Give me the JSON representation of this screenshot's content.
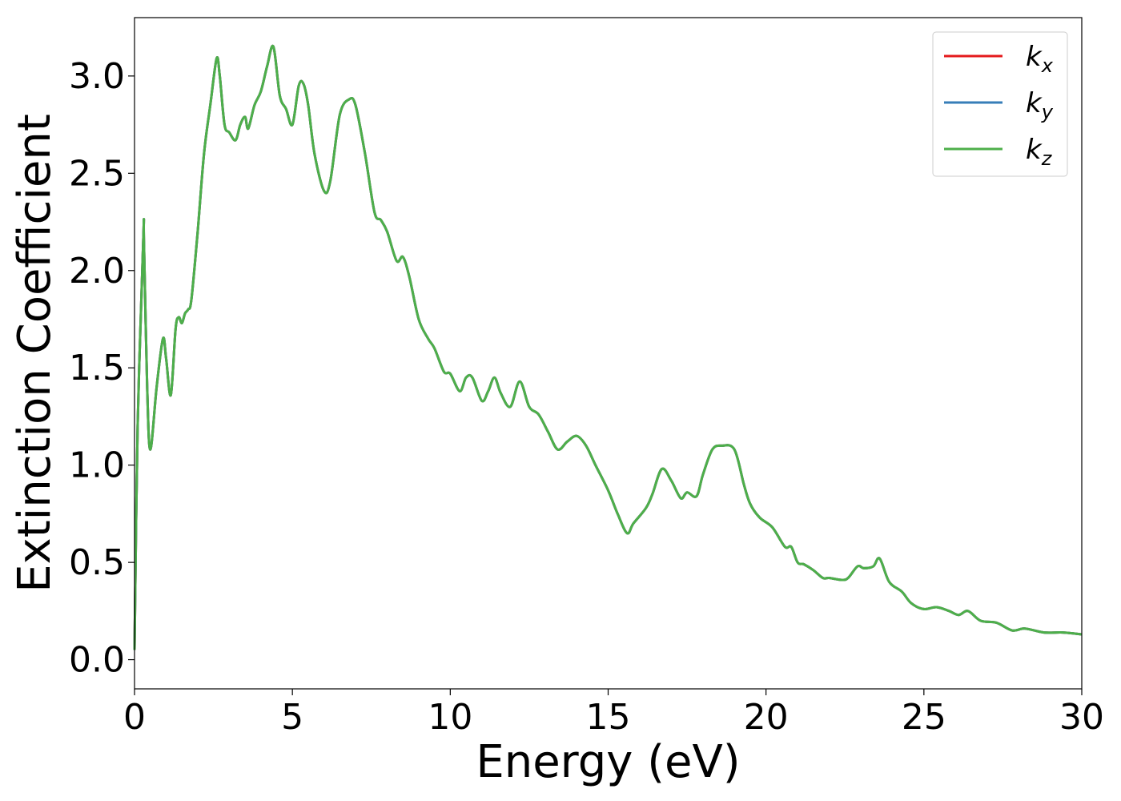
{
  "chart_data": {
    "type": "line",
    "title": "",
    "xlabel": "Energy (eV)",
    "ylabel": "Extinction Coefficient",
    "xlim": [
      0,
      30
    ],
    "ylim": [
      -0.15,
      3.3
    ],
    "xticks": [
      0,
      5,
      10,
      15,
      20,
      25,
      30
    ],
    "xtick_labels": [
      "0",
      "5",
      "10",
      "15",
      "20",
      "25",
      "30"
    ],
    "yticks": [
      0.0,
      0.5,
      1.0,
      1.5,
      2.0,
      2.5,
      3.0
    ],
    "ytick_labels": [
      "0.0",
      "0.5",
      "1.0",
      "1.5",
      "2.0",
      "2.5",
      "3.0"
    ],
    "grid": false,
    "legend_position": "top-right",
    "colors": {
      "kx": "#e41a1c",
      "ky": "#377eb8",
      "kz": "#4daf4a"
    },
    "x": [
      0,
      0.1,
      0.28,
      0.3,
      0.4,
      0.5,
      0.7,
      0.9,
      1.0,
      1.15,
      1.3,
      1.4,
      1.5,
      1.6,
      1.7,
      1.8,
      2.0,
      2.2,
      2.4,
      2.6,
      2.7,
      2.85,
      3.0,
      3.2,
      3.35,
      3.5,
      3.6,
      3.8,
      4.0,
      4.2,
      4.4,
      4.6,
      4.8,
      5.0,
      5.2,
      5.35,
      5.5,
      5.7,
      6.0,
      6.2,
      6.5,
      6.8,
      7.0,
      7.3,
      7.6,
      7.8,
      8.0,
      8.3,
      8.5,
      8.7,
      9.0,
      9.3,
      9.5,
      9.8,
      10.0,
      10.3,
      10.5,
      10.7,
      11.0,
      11.2,
      11.4,
      11.6,
      11.9,
      12.2,
      12.5,
      12.8,
      13.1,
      13.4,
      13.7,
      14.0,
      14.3,
      14.6,
      15.0,
      15.3,
      15.6,
      15.8,
      16.2,
      16.4,
      16.7,
      17.0,
      17.3,
      17.5,
      17.8,
      18.0,
      18.3,
      18.6,
      19.0,
      19.3,
      19.5,
      19.8,
      20.2,
      20.6,
      20.8,
      21.0,
      21.2,
      21.5,
      21.8,
      22.0,
      22.4,
      22.6,
      22.9,
      23.1,
      23.4,
      23.6,
      23.9,
      24.3,
      24.6,
      25.0,
      25.4,
      25.8,
      26.1,
      26.4,
      26.8,
      27.3,
      27.8,
      28.2,
      28.8,
      29.4,
      30.0
    ],
    "series": [
      {
        "name": "kx",
        "label": "k",
        "sub": "x",
        "values": [
          0.05,
          1.2,
          2.17,
          2.14,
          1.4,
          1.08,
          1.4,
          1.65,
          1.55,
          1.36,
          1.7,
          1.76,
          1.73,
          1.78,
          1.8,
          1.85,
          2.2,
          2.6,
          2.85,
          3.09,
          3.0,
          2.75,
          2.71,
          2.67,
          2.75,
          2.79,
          2.73,
          2.85,
          2.92,
          3.05,
          3.15,
          2.9,
          2.83,
          2.75,
          2.95,
          2.96,
          2.85,
          2.6,
          2.41,
          2.46,
          2.8,
          2.88,
          2.85,
          2.6,
          2.3,
          2.26,
          2.2,
          2.05,
          2.07,
          1.97,
          1.75,
          1.65,
          1.6,
          1.48,
          1.47,
          1.38,
          1.45,
          1.45,
          1.33,
          1.38,
          1.45,
          1.37,
          1.3,
          1.43,
          1.3,
          1.26,
          1.17,
          1.08,
          1.12,
          1.15,
          1.1,
          1.0,
          0.87,
          0.75,
          0.65,
          0.7,
          0.78,
          0.85,
          0.98,
          0.92,
          0.83,
          0.86,
          0.84,
          0.95,
          1.08,
          1.1,
          1.08,
          0.9,
          0.8,
          0.73,
          0.68,
          0.58,
          0.58,
          0.5,
          0.49,
          0.46,
          0.42,
          0.42,
          0.41,
          0.42,
          0.48,
          0.47,
          0.48,
          0.52,
          0.4,
          0.35,
          0.29,
          0.26,
          0.27,
          0.25,
          0.23,
          0.25,
          0.2,
          0.19,
          0.15,
          0.16,
          0.14,
          0.14,
          0.13
        ]
      },
      {
        "name": "ky",
        "label": "k",
        "sub": "y",
        "values": [
          0.05,
          1.2,
          2.17,
          2.14,
          1.4,
          1.08,
          1.4,
          1.65,
          1.55,
          1.36,
          1.7,
          1.76,
          1.73,
          1.78,
          1.8,
          1.85,
          2.2,
          2.6,
          2.85,
          3.09,
          3.0,
          2.75,
          2.71,
          2.67,
          2.75,
          2.79,
          2.73,
          2.85,
          2.92,
          3.05,
          3.15,
          2.9,
          2.83,
          2.75,
          2.95,
          2.96,
          2.85,
          2.6,
          2.41,
          2.46,
          2.8,
          2.88,
          2.85,
          2.6,
          2.3,
          2.26,
          2.2,
          2.05,
          2.07,
          1.97,
          1.75,
          1.65,
          1.6,
          1.48,
          1.47,
          1.38,
          1.45,
          1.45,
          1.33,
          1.38,
          1.45,
          1.37,
          1.3,
          1.43,
          1.3,
          1.26,
          1.17,
          1.08,
          1.12,
          1.15,
          1.1,
          1.0,
          0.87,
          0.75,
          0.65,
          0.7,
          0.78,
          0.85,
          0.98,
          0.92,
          0.83,
          0.86,
          0.84,
          0.95,
          1.08,
          1.1,
          1.08,
          0.9,
          0.8,
          0.73,
          0.68,
          0.58,
          0.58,
          0.5,
          0.49,
          0.46,
          0.42,
          0.42,
          0.41,
          0.42,
          0.48,
          0.47,
          0.48,
          0.52,
          0.4,
          0.35,
          0.29,
          0.26,
          0.27,
          0.25,
          0.23,
          0.25,
          0.2,
          0.19,
          0.15,
          0.16,
          0.14,
          0.14,
          0.13
        ]
      },
      {
        "name": "kz",
        "label": "k",
        "sub": "z",
        "values": [
          0.05,
          1.2,
          2.17,
          2.14,
          1.4,
          1.08,
          1.4,
          1.65,
          1.55,
          1.36,
          1.7,
          1.76,
          1.73,
          1.78,
          1.8,
          1.85,
          2.2,
          2.6,
          2.85,
          3.09,
          3.0,
          2.75,
          2.71,
          2.67,
          2.75,
          2.79,
          2.73,
          2.85,
          2.92,
          3.05,
          3.15,
          2.9,
          2.83,
          2.75,
          2.95,
          2.96,
          2.85,
          2.6,
          2.41,
          2.46,
          2.8,
          2.88,
          2.85,
          2.6,
          2.3,
          2.26,
          2.2,
          2.05,
          2.07,
          1.97,
          1.75,
          1.65,
          1.6,
          1.48,
          1.47,
          1.38,
          1.45,
          1.45,
          1.33,
          1.38,
          1.45,
          1.37,
          1.3,
          1.43,
          1.3,
          1.26,
          1.17,
          1.08,
          1.12,
          1.15,
          1.1,
          1.0,
          0.87,
          0.75,
          0.65,
          0.7,
          0.78,
          0.85,
          0.98,
          0.92,
          0.83,
          0.86,
          0.84,
          0.95,
          1.08,
          1.1,
          1.08,
          0.9,
          0.8,
          0.73,
          0.68,
          0.58,
          0.58,
          0.5,
          0.49,
          0.46,
          0.42,
          0.42,
          0.41,
          0.42,
          0.48,
          0.47,
          0.48,
          0.52,
          0.4,
          0.35,
          0.29,
          0.26,
          0.27,
          0.25,
          0.23,
          0.25,
          0.2,
          0.19,
          0.15,
          0.16,
          0.14,
          0.14,
          0.13
        ]
      }
    ]
  }
}
